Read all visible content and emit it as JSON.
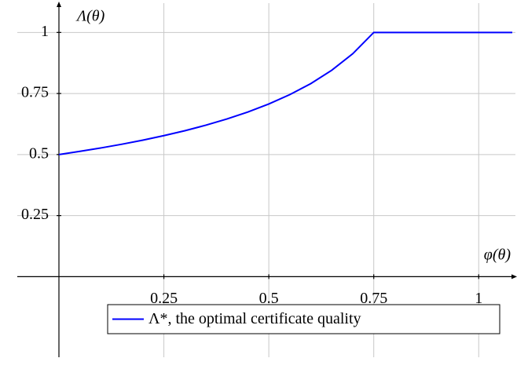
{
  "chart_data": {
    "type": "line",
    "x_label": "φ(θ)",
    "y_label": "Λ(θ)",
    "x": [
      0,
      0.05,
      0.1,
      0.15,
      0.2,
      0.25,
      0.3,
      0.35,
      0.4,
      0.45,
      0.5,
      0.55,
      0.6,
      0.65,
      0.7,
      0.75,
      1.08
    ],
    "series": [
      {
        "name": "Λ*, the optimal certificate quality",
        "color": "#0000ff",
        "values": [
          0.5,
          0.513,
          0.527,
          0.5423,
          0.559,
          0.5774,
          0.5976,
          0.6202,
          0.6455,
          0.6742,
          0.7071,
          0.7454,
          0.7906,
          0.8452,
          0.9129,
          1,
          1
        ]
      }
    ],
    "xlim": [
      0,
      1.08
    ],
    "xticks": [
      0.25,
      0.5,
      0.75,
      1
    ],
    "ylim": [
      -0.33,
      1.12
    ],
    "yticks": [
      0.25,
      0.5,
      0.75,
      1
    ],
    "grid": true,
    "legend": "lower right"
  }
}
